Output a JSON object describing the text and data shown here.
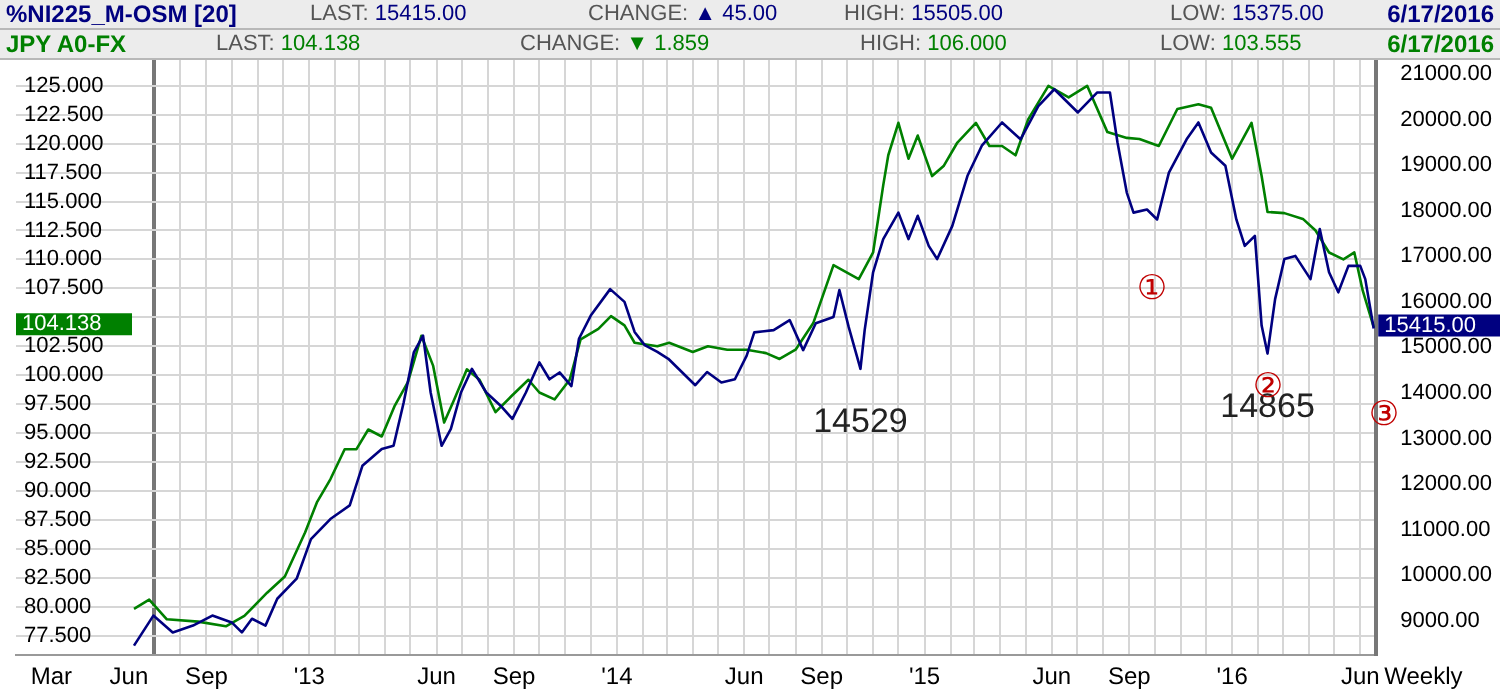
{
  "chart_data": {
    "type": "line",
    "xlabel": "Weekly",
    "legend": "top",
    "grid": true,
    "marker": "none",
    "xlim": [
      "2012-01-19",
      "2016-06-20"
    ],
    "xticks": [
      {
        "value": "2012-03-01",
        "label": "Mar"
      },
      {
        "value": "2012-06-01",
        "label": "Jun"
      },
      {
        "value": "2012-07-01",
        "label": null
      },
      {
        "value": "2012-08-01",
        "label": null
      },
      {
        "value": "2012-09-01",
        "label": "Sep"
      },
      {
        "value": "2012-10-01",
        "label": null
      },
      {
        "value": "2012-11-01",
        "label": null
      },
      {
        "value": "2012-12-01",
        "label": null
      },
      {
        "value": "2013-01-01",
        "label": "'13"
      },
      {
        "value": "2013-02-01",
        "label": null
      },
      {
        "value": "2013-03-01",
        "label": null
      },
      {
        "value": "2013-04-01",
        "label": null
      },
      {
        "value": "2013-05-01",
        "label": null
      },
      {
        "value": "2013-06-01",
        "label": "Jun"
      },
      {
        "value": "2013-07-01",
        "label": null
      },
      {
        "value": "2013-08-01",
        "label": null
      },
      {
        "value": "2013-09-01",
        "label": "Sep"
      },
      {
        "value": "2013-10-01",
        "label": null
      },
      {
        "value": "2013-11-01",
        "label": null
      },
      {
        "value": "2013-12-01",
        "label": null
      },
      {
        "value": "2014-01-01",
        "label": "'14"
      },
      {
        "value": "2014-02-01",
        "label": null
      },
      {
        "value": "2014-03-01",
        "label": null
      },
      {
        "value": "2014-04-01",
        "label": null
      },
      {
        "value": "2014-05-01",
        "label": null
      },
      {
        "value": "2014-06-01",
        "label": "Jun"
      },
      {
        "value": "2014-07-01",
        "label": null
      },
      {
        "value": "2014-08-01",
        "label": null
      },
      {
        "value": "2014-09-01",
        "label": "Sep"
      },
      {
        "value": "2014-10-01",
        "label": null
      },
      {
        "value": "2014-11-01",
        "label": null
      },
      {
        "value": "2014-12-01",
        "label": null
      },
      {
        "value": "2015-01-01",
        "label": "'15"
      },
      {
        "value": "2015-02-01",
        "label": null
      },
      {
        "value": "2015-03-01",
        "label": null
      },
      {
        "value": "2015-04-01",
        "label": null
      },
      {
        "value": "2015-05-01",
        "label": null
      },
      {
        "value": "2015-06-01",
        "label": "Jun"
      },
      {
        "value": "2015-07-01",
        "label": null
      },
      {
        "value": "2015-08-01",
        "label": null
      },
      {
        "value": "2015-09-01",
        "label": "Sep"
      },
      {
        "value": "2015-10-01",
        "label": null
      },
      {
        "value": "2015-11-01",
        "label": null
      },
      {
        "value": "2015-12-01",
        "label": null
      },
      {
        "value": "2016-01-01",
        "label": "'16"
      },
      {
        "value": "2016-02-01",
        "label": null
      },
      {
        "value": "2016-03-01",
        "label": null
      },
      {
        "value": "2016-04-01",
        "label": null
      },
      {
        "value": "2016-05-01",
        "label": null
      },
      {
        "value": "2016-06-01",
        "label": "Jun"
      }
    ],
    "ylim": [
      75.8,
      127.3
    ],
    "yticks": [
      {
        "value": 77.5,
        "label": "77.500"
      },
      {
        "value": 80,
        "label": "80.000"
      },
      {
        "value": 82.5,
        "label": "82.500"
      },
      {
        "value": 85,
        "label": "85.000"
      },
      {
        "value": 87.5,
        "label": "87.500"
      },
      {
        "value": 90,
        "label": "90.000"
      },
      {
        "value": 92.5,
        "label": "92.500"
      },
      {
        "value": 95,
        "label": "95.000"
      },
      {
        "value": 97.5,
        "label": "97.500"
      },
      {
        "value": 100,
        "label": "100.000"
      },
      {
        "value": 102.5,
        "label": "102.500"
      },
      {
        "value": 105,
        "label": null
      },
      {
        "value": 107.5,
        "label": "107.500"
      },
      {
        "value": 110,
        "label": "110.000"
      },
      {
        "value": 112.5,
        "label": "112.500"
      },
      {
        "value": 115,
        "label": "115.000"
      },
      {
        "value": 117.5,
        "label": "117.500"
      },
      {
        "value": 120,
        "label": "120.000"
      },
      {
        "value": 122.5,
        "label": "122.500"
      },
      {
        "value": 125,
        "label": "125.000"
      }
    ],
    "y2lim": [
      8240,
      21330
    ],
    "y2ticks": [
      {
        "value": 9000,
        "label": "9000.00"
      },
      {
        "value": 10000,
        "label": "10000.00"
      },
      {
        "value": 11000,
        "label": "11000.00"
      },
      {
        "value": 12000,
        "label": "12000.00"
      },
      {
        "value": 13000,
        "label": "13000.00"
      },
      {
        "value": 14000,
        "label": "14000.00"
      },
      {
        "value": 15000,
        "label": "15000.00"
      },
      {
        "value": 16000,
        "label": "16000.00"
      },
      {
        "value": 17000,
        "label": "17000.00"
      },
      {
        "value": 18000,
        "label": "18000.00"
      },
      {
        "value": 19000,
        "label": "19000.00"
      },
      {
        "value": 20000,
        "label": "20000.00"
      },
      {
        "value": 21000,
        "label": "21000.00"
      }
    ],
    "annotations": [
      "LAST: 15415.00",
      "CHANGE: ▲ 45.00",
      "HIGH: 15505.00",
      "LOW: 15375.00",
      "6/17/2016",
      "LAST: 104.138",
      "CHANGE: ▼ 1.859",
      "HIGH: 106.000",
      "LOW: 103.555",
      "6/17/2016",
      "①",
      "②",
      "③",
      "104.138"
    ],
    "series": [
      {
        "name": "%NI225_M-OSM [20]",
        "color": "#000080",
        "axis": "y2",
        "x": [
          "2012-06-07",
          "2012-06-30",
          "2012-07-23",
          "2012-08-16",
          "2012-09-08",
          "2012-10-01",
          "2012-10-13",
          "2012-10-25",
          "2012-11-10",
          "2012-11-24",
          "2012-12-17",
          "2013-01-03",
          "2013-01-26",
          "2013-02-18",
          "2013-03-05",
          "2013-03-28",
          "2013-04-11",
          "2013-04-23",
          "2013-05-05",
          "2013-05-16",
          "2013-05-25",
          "2013-06-07",
          "2013-06-18",
          "2013-06-30",
          "2013-07-13",
          "2013-07-30",
          "2013-08-16",
          "2013-08-30",
          "2013-09-15",
          "2013-10-01",
          "2013-10-13",
          "2013-10-25",
          "2013-11-08",
          "2013-11-17",
          "2013-12-01",
          "2013-12-24",
          "2014-01-10",
          "2014-01-22",
          "2014-02-03",
          "2014-02-18",
          "2014-03-03",
          "2014-03-19",
          "2014-04-04",
          "2014-04-18",
          "2014-05-05",
          "2014-05-21",
          "2014-06-04",
          "2014-06-13",
          "2014-07-06",
          "2014-07-25",
          "2014-08-10",
          "2014-08-25",
          "2014-09-15",
          "2014-09-22",
          "2014-10-03",
          "2014-10-17",
          "2014-10-22",
          "2014-11-01",
          "2014-11-13",
          "2014-12-01",
          "2014-12-13",
          "2014-12-24",
          "2015-01-06",
          "2015-01-16",
          "2015-02-03",
          "2015-02-21",
          "2015-03-10",
          "2015-04-03",
          "2015-04-25",
          "2015-05-16",
          "2015-06-04",
          "2015-07-02",
          "2015-07-25",
          "2015-08-09",
          "2015-08-18",
          "2015-08-29",
          "2015-09-06",
          "2015-09-22",
          "2015-10-04",
          "2015-10-18",
          "2015-11-08",
          "2015-11-22",
          "2015-12-07",
          "2015-12-24",
          "2016-01-06",
          "2016-01-16",
          "2016-01-28",
          "2016-02-05",
          "2016-02-12",
          "2016-02-21",
          "2016-03-03",
          "2016-03-16",
          "2016-04-03",
          "2016-04-14",
          "2016-04-25",
          "2016-05-06",
          "2016-05-18",
          "2016-06-01",
          "2016-06-07",
          "2016-06-17"
        ],
        "values": [
          8450,
          9110,
          8740,
          8890,
          9110,
          8960,
          8740,
          9040,
          8890,
          9480,
          9920,
          10790,
          11230,
          11530,
          12400,
          12770,
          12840,
          13790,
          14890,
          15260,
          14010,
          12840,
          13210,
          14010,
          14530,
          14010,
          13720,
          13430,
          14010,
          14670,
          14300,
          14450,
          14150,
          15190,
          15700,
          16280,
          16000,
          15340,
          15050,
          14900,
          14750,
          14460,
          14170,
          14460,
          14230,
          14300,
          14820,
          15330,
          15380,
          15600,
          14940,
          15530,
          15670,
          16260,
          15450,
          14529,
          15380,
          16650,
          17380,
          17960,
          17380,
          17890,
          17230,
          16940,
          17670,
          18770,
          19430,
          19940,
          19570,
          20300,
          20670,
          20160,
          20600,
          20600,
          19500,
          18400,
          17960,
          18030,
          17810,
          18840,
          19570,
          19940,
          19280,
          18990,
          17810,
          17230,
          17450,
          15480,
          14865,
          16060,
          16940,
          17010,
          16500,
          17600,
          16650,
          16210,
          16790,
          16790,
          16500,
          15415
        ],
        "value_labels": [
          null,
          null,
          null,
          null,
          null,
          null,
          null,
          null,
          null,
          null,
          null,
          null,
          null,
          null,
          null,
          null,
          null,
          null,
          null,
          null,
          null,
          null,
          null,
          null,
          null,
          null,
          null,
          null,
          null,
          null,
          null,
          null,
          null,
          null,
          null,
          null,
          null,
          null,
          null,
          null,
          null,
          null,
          null,
          null,
          null,
          null,
          null,
          null,
          null,
          null,
          null,
          null,
          null,
          null,
          null,
          "14529",
          null,
          null,
          null,
          null,
          null,
          null,
          null,
          null,
          null,
          null,
          null,
          null,
          null,
          null,
          null,
          null,
          null,
          null,
          null,
          null,
          null,
          null,
          null,
          null,
          null,
          null,
          null,
          null,
          null,
          null,
          null,
          null,
          "14865",
          null,
          null,
          null,
          null,
          null,
          null,
          null,
          null,
          null,
          null,
          "15415.00"
        ]
      },
      {
        "name": "JPY A0-FX",
        "color": "#008000",
        "x": [
          "2012-06-07",
          "2012-06-25",
          "2012-07-16",
          "2012-08-22",
          "2012-09-24",
          "2012-10-16",
          "2012-11-12",
          "2012-12-03",
          "2012-12-27",
          "2013-01-10",
          "2013-01-26",
          "2013-02-12",
          "2013-02-26",
          "2013-03-12",
          "2013-03-28",
          "2013-04-12",
          "2013-04-28",
          "2013-05-14",
          "2013-05-28",
          "2013-06-10",
          "2013-06-22",
          "2013-07-07",
          "2013-07-22",
          "2013-08-10",
          "2013-08-29",
          "2013-09-18",
          "2013-10-01",
          "2013-10-19",
          "2013-11-06",
          "2013-11-19",
          "2013-12-10",
          "2013-12-25",
          "2014-01-10",
          "2014-01-22",
          "2014-02-18",
          "2014-03-04",
          "2014-04-01",
          "2014-04-19",
          "2014-05-12",
          "2014-06-04",
          "2014-06-27",
          "2014-07-13",
          "2014-08-01",
          "2014-08-22",
          "2014-09-15",
          "2014-10-15",
          "2014-11-01",
          "2014-11-13",
          "2014-11-19",
          "2014-12-01",
          "2014-12-13",
          "2014-12-24",
          "2015-01-10",
          "2015-01-24",
          "2015-02-09",
          "2015-03-03",
          "2015-03-19",
          "2015-04-03",
          "2015-04-19",
          "2015-05-04",
          "2015-05-28",
          "2015-06-21",
          "2015-07-13",
          "2015-08-06",
          "2015-08-29",
          "2015-09-13",
          "2015-10-06",
          "2015-10-28",
          "2015-11-22",
          "2015-12-07",
          "2016-01-01",
          "2016-01-24",
          "2016-02-05",
          "2016-02-12",
          "2016-03-03",
          "2016-03-25",
          "2016-04-09",
          "2016-04-25",
          "2016-05-12",
          "2016-05-25",
          "2016-06-04",
          "2016-06-17"
        ],
        "values": [
          79.8,
          80.6,
          78.9,
          78.7,
          78.3,
          79.2,
          81.2,
          82.6,
          86.4,
          89,
          91,
          93.6,
          93.6,
          95.3,
          94.7,
          97.3,
          99.4,
          103.4,
          100.8,
          95.9,
          97.9,
          100.5,
          99.6,
          96.8,
          98.2,
          99.6,
          98.5,
          97.9,
          99.6,
          103.1,
          104,
          105.1,
          104.3,
          102.8,
          102.5,
          102.8,
          102,
          102.5,
          102.2,
          102.2,
          101.9,
          101.4,
          102.2,
          104.5,
          109.5,
          108.3,
          110.6,
          116.4,
          119,
          121.8,
          118.7,
          120.7,
          117.2,
          118.1,
          120.1,
          121.8,
          119.8,
          119.8,
          119,
          122.1,
          125,
          124,
          125,
          121,
          120.5,
          120.4,
          119.8,
          123,
          123.4,
          123.1,
          118.7,
          121.8,
          117.2,
          114.1,
          114,
          113.5,
          112.5,
          110.6,
          110,
          110.6,
          107.3,
          104.138
        ],
        "value_labels": [
          null,
          null,
          null,
          null,
          null,
          null,
          null,
          null,
          null,
          null,
          null,
          null,
          null,
          null,
          null,
          null,
          null,
          null,
          null,
          null,
          null,
          null,
          null,
          null,
          null,
          null,
          null,
          null,
          null,
          null,
          null,
          null,
          null,
          null,
          null,
          null,
          null,
          null,
          null,
          null,
          null,
          null,
          null,
          null,
          null,
          null,
          null,
          null,
          null,
          null,
          null,
          null,
          null,
          null,
          null,
          null,
          null,
          null,
          null,
          null,
          null,
          null,
          null,
          null,
          null,
          null,
          null,
          null,
          null,
          null,
          null,
          null,
          null,
          null,
          null,
          null,
          null,
          null,
          null,
          null,
          null,
          null
        ]
      }
    ]
  }
}
